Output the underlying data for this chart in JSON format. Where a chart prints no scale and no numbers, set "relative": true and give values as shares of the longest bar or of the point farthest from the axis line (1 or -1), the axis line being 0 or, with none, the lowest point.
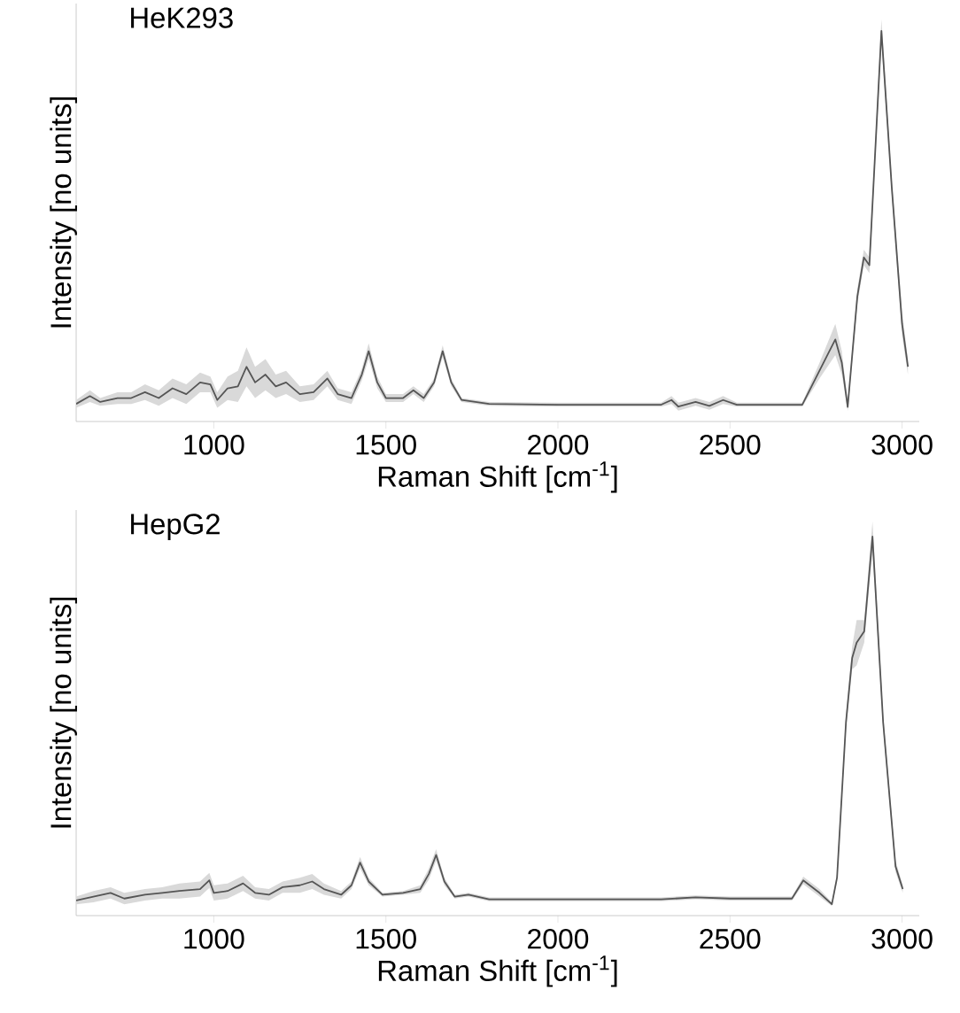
{
  "chart_data": [
    {
      "type": "line",
      "title": "HeK293",
      "xlabel": "Raman Shift [cm$^{-1}$]",
      "ylabel": "Intensity [no units]",
      "relative": true,
      "tick_labels": "x",
      "xlim": [
        600,
        3050
      ],
      "xticks": [
        1000,
        1500,
        2000,
        2500,
        3000
      ],
      "series": [
        {
          "color": "#555555",
          "x": [
            600,
            640,
            670,
            720,
            760,
            800,
            840,
            880,
            920,
            960,
            990,
            1010,
            1040,
            1070,
            1095,
            1120,
            1150,
            1180,
            1210,
            1250,
            1290,
            1330,
            1360,
            1400,
            1430,
            1450,
            1475,
            1500,
            1550,
            1580,
            1610,
            1640,
            1665,
            1690,
            1720,
            1800,
            2000,
            2300,
            2330,
            2350,
            2400,
            2440,
            2480,
            2520,
            2600,
            2710,
            2760,
            2806,
            2825,
            2842,
            2870,
            2889,
            2905,
            2940,
            2970,
            3000,
            3017
          ],
          "values": [
            0.045,
            0.065,
            0.05,
            0.06,
            0.06,
            0.075,
            0.06,
            0.085,
            0.07,
            0.1,
            0.095,
            0.055,
            0.085,
            0.09,
            0.14,
            0.1,
            0.12,
            0.09,
            0.1,
            0.07,
            0.075,
            0.11,
            0.07,
            0.06,
            0.12,
            0.18,
            0.1,
            0.06,
            0.06,
            0.08,
            0.06,
            0.1,
            0.18,
            0.1,
            0.055,
            0.045,
            0.043,
            0.043,
            0.055,
            0.038,
            0.05,
            0.04,
            0.055,
            0.043,
            0.043,
            0.043,
            0.13,
            0.21,
            0.15,
            0.037,
            0.32,
            0.42,
            0.4,
            1.0,
            0.6,
            0.25,
            0.14
          ],
          "lower": [
            0.035,
            0.05,
            0.04,
            0.045,
            0.045,
            0.055,
            0.04,
            0.06,
            0.045,
            0.075,
            0.075,
            0.035,
            0.055,
            0.05,
            0.09,
            0.06,
            0.08,
            0.06,
            0.07,
            0.05,
            0.055,
            0.09,
            0.055,
            0.045,
            0.105,
            0.16,
            0.085,
            0.05,
            0.05,
            0.07,
            0.05,
            0.09,
            0.165,
            0.09,
            0.05,
            0.04,
            0.038,
            0.038,
            0.045,
            0.028,
            0.04,
            0.03,
            0.045,
            0.038,
            0.038,
            0.038,
            0.11,
            0.17,
            0.12,
            0.027,
            0.3,
            0.4,
            0.38,
            0.97,
            0.58,
            0.22,
            0.12
          ],
          "upper": [
            0.055,
            0.08,
            0.06,
            0.075,
            0.075,
            0.095,
            0.08,
            0.11,
            0.095,
            0.125,
            0.115,
            0.075,
            0.115,
            0.13,
            0.19,
            0.14,
            0.16,
            0.12,
            0.13,
            0.09,
            0.095,
            0.13,
            0.085,
            0.075,
            0.135,
            0.2,
            0.115,
            0.07,
            0.07,
            0.09,
            0.07,
            0.11,
            0.195,
            0.11,
            0.06,
            0.05,
            0.048,
            0.048,
            0.065,
            0.048,
            0.06,
            0.05,
            0.065,
            0.048,
            0.048,
            0.048,
            0.15,
            0.25,
            0.18,
            0.047,
            0.34,
            0.44,
            0.42,
            1.03,
            0.62,
            0.28,
            0.16
          ]
        }
      ]
    },
    {
      "type": "line",
      "title": "HepG2",
      "xlabel": "Raman Shift [cm$^{-1}$]",
      "ylabel": "Intensity [no units]",
      "relative": true,
      "tick_labels": "x",
      "xlim": [
        600,
        3050
      ],
      "xticks": [
        1000,
        1500,
        2000,
        2500,
        3000
      ],
      "series": [
        {
          "color": "#555555",
          "x": [
            600,
            650,
            700,
            740,
            800,
            850,
            900,
            960,
            987,
            1000,
            1040,
            1085,
            1120,
            1160,
            1200,
            1250,
            1286,
            1320,
            1370,
            1400,
            1425,
            1450,
            1490,
            1550,
            1600,
            1625,
            1646,
            1670,
            1700,
            1740,
            1800,
            2300,
            2400,
            2500,
            2680,
            2713,
            2760,
            2796,
            2811,
            2837,
            2855,
            2868,
            2890,
            2914,
            2945,
            2981,
            3002
          ],
          "values": [
            0.04,
            0.05,
            0.06,
            0.045,
            0.055,
            0.06,
            0.065,
            0.07,
            0.093,
            0.06,
            0.065,
            0.085,
            0.06,
            0.055,
            0.075,
            0.08,
            0.09,
            0.07,
            0.055,
            0.08,
            0.14,
            0.09,
            0.055,
            0.06,
            0.07,
            0.11,
            0.16,
            0.09,
            0.05,
            0.055,
            0.043,
            0.043,
            0.048,
            0.045,
            0.045,
            0.093,
            0.06,
            0.03,
            0.1,
            0.51,
            0.68,
            0.72,
            0.75,
            1.0,
            0.51,
            0.13,
            0.07
          ],
          "lower": [
            0.03,
            0.035,
            0.045,
            0.03,
            0.04,
            0.045,
            0.045,
            0.05,
            0.073,
            0.04,
            0.045,
            0.065,
            0.045,
            0.04,
            0.06,
            0.06,
            0.07,
            0.055,
            0.045,
            0.07,
            0.125,
            0.08,
            0.05,
            0.055,
            0.06,
            0.095,
            0.145,
            0.08,
            0.045,
            0.05,
            0.038,
            0.038,
            0.043,
            0.04,
            0.04,
            0.083,
            0.05,
            0.025,
            0.09,
            0.49,
            0.65,
            0.66,
            0.72,
            0.96,
            0.49,
            0.115,
            0.06
          ],
          "upper": [
            0.05,
            0.065,
            0.075,
            0.06,
            0.07,
            0.075,
            0.085,
            0.09,
            0.113,
            0.08,
            0.085,
            0.105,
            0.075,
            0.07,
            0.09,
            0.1,
            0.11,
            0.085,
            0.065,
            0.09,
            0.155,
            0.1,
            0.06,
            0.065,
            0.08,
            0.125,
            0.175,
            0.1,
            0.055,
            0.06,
            0.048,
            0.048,
            0.053,
            0.05,
            0.05,
            0.103,
            0.07,
            0.035,
            0.11,
            0.53,
            0.71,
            0.78,
            0.78,
            1.04,
            0.53,
            0.145,
            0.08
          ]
        }
      ]
    }
  ]
}
